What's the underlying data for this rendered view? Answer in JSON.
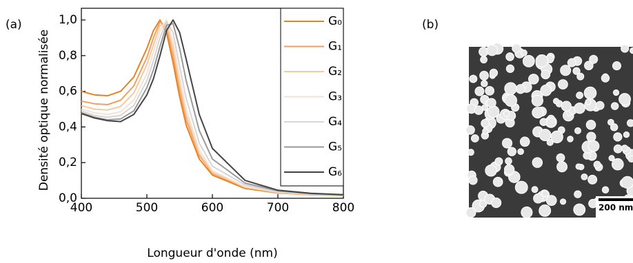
{
  "chart_data": {
    "type": "line",
    "panel_labels": [
      "(a)",
      "(b)"
    ],
    "xlabel": "Longueur d'onde (nm)",
    "ylabel": "Densité optique normalisée",
    "x": [
      400,
      420,
      440,
      460,
      480,
      500,
      510,
      520,
      530,
      540,
      550,
      560,
      580,
      600,
      650,
      700,
      750,
      800
    ],
    "series": [
      {
        "name": "G₀",
        "color": "#e8821e",
        "values": [
          0.6,
          0.58,
          0.575,
          0.6,
          0.68,
          0.84,
          0.94,
          1.0,
          0.93,
          0.76,
          0.57,
          0.41,
          0.22,
          0.13,
          0.055,
          0.03,
          0.02,
          0.015
        ]
      },
      {
        "name": "G₁",
        "color": "#f0a060",
        "values": [
          0.545,
          0.53,
          0.525,
          0.55,
          0.63,
          0.79,
          0.9,
          0.99,
          0.96,
          0.8,
          0.61,
          0.44,
          0.24,
          0.14,
          0.06,
          0.032,
          0.021,
          0.016
        ]
      },
      {
        "name": "G₂",
        "color": "#f6c9a0",
        "values": [
          0.52,
          0.5,
          0.495,
          0.515,
          0.59,
          0.75,
          0.86,
          0.97,
          0.98,
          0.84,
          0.64,
          0.47,
          0.25,
          0.145,
          0.062,
          0.033,
          0.022,
          0.016
        ]
      },
      {
        "name": "G₃",
        "color": "#f3e3d6",
        "values": [
          0.5,
          0.48,
          0.47,
          0.485,
          0.55,
          0.7,
          0.82,
          0.94,
          1.0,
          0.88,
          0.68,
          0.5,
          0.27,
          0.155,
          0.065,
          0.035,
          0.023,
          0.017
        ]
      },
      {
        "name": "G₄",
        "color": "#d6d6d6",
        "values": [
          0.49,
          0.465,
          0.455,
          0.465,
          0.52,
          0.66,
          0.77,
          0.9,
          0.99,
          0.93,
          0.74,
          0.56,
          0.31,
          0.18,
          0.075,
          0.038,
          0.024,
          0.018
        ]
      },
      {
        "name": "G₅",
        "color": "#999999",
        "values": [
          0.48,
          0.455,
          0.44,
          0.445,
          0.49,
          0.62,
          0.72,
          0.85,
          0.97,
          0.98,
          0.84,
          0.66,
          0.38,
          0.22,
          0.085,
          0.042,
          0.026,
          0.019
        ]
      },
      {
        "name": "G₆",
        "color": "#444444",
        "values": [
          0.475,
          0.45,
          0.435,
          0.43,
          0.47,
          0.58,
          0.67,
          0.8,
          0.94,
          1.0,
          0.93,
          0.78,
          0.47,
          0.28,
          0.1,
          0.045,
          0.028,
          0.02
        ]
      }
    ],
    "xlim": [
      400,
      800
    ],
    "xticks": [
      400,
      500,
      600,
      700,
      800
    ],
    "ylim": [
      0,
      1.0
    ],
    "yticks": [
      {
        "value": 0,
        "label": "0,0"
      },
      {
        "value": 0.2,
        "label": "0,2"
      },
      {
        "value": 0.4,
        "label": "0,4"
      },
      {
        "value": 0.6,
        "label": "0,6"
      },
      {
        "value": 0.8,
        "label": "0,8"
      },
      {
        "value": 1.0,
        "label": "1,0"
      }
    ],
    "legend": "upper right",
    "scale_bar": "200 nm"
  }
}
